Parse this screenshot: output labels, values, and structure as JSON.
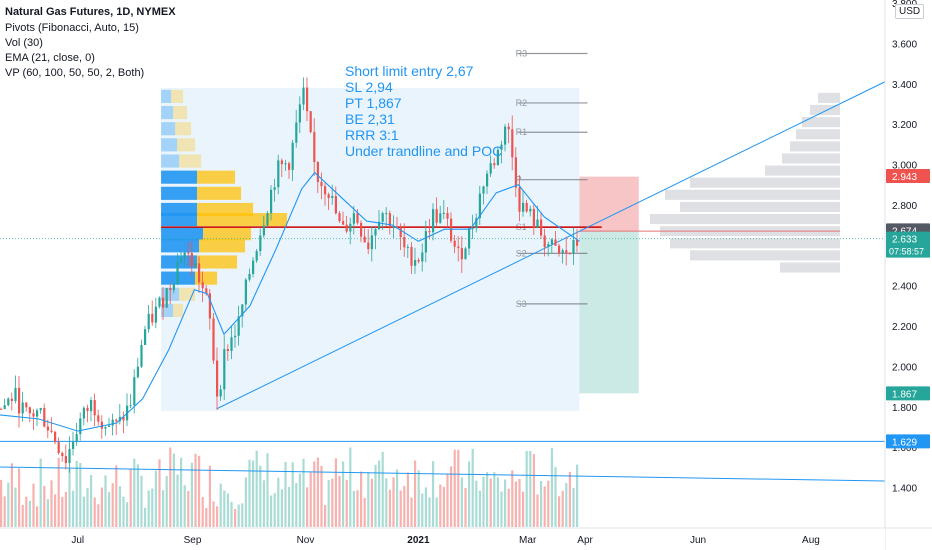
{
  "header": {
    "title": "Natural Gas Futures, 1D, NYMEX",
    "indicators": [
      "Pivots (Fibonacci, Auto, 15)",
      "Vol (30)",
      "EMA (21, close, 0)",
      "VP (60, 100, 50, 50, 2, Both)"
    ]
  },
  "annotation": {
    "lines": [
      "Short limit entry 2,67",
      "SL 2,94",
      "PT 1,867",
      "BE 2,31",
      "RRR 3:1",
      "Under trandline and POC"
    ]
  },
  "colors": {
    "up": "#26a69a",
    "down": "#ef5350",
    "ema": "#2196f3",
    "poc": "#cc0000",
    "pivot": "#787b86",
    "vp_up": "#2196f3",
    "vp_down": "#ffc107",
    "loss_zone": "#f7c5c5",
    "profit_zone": "#cbe9e5",
    "range_box": "#eaf4fc"
  },
  "chart_data": {
    "type": "candlestick",
    "symbol": "Natural Gas Futures",
    "timeframe": "1D",
    "exchange": "NYMEX",
    "currency": "USD",
    "ylim": [
      1.2,
      3.8
    ],
    "y_ticks": [
      "3.800",
      "3.600",
      "3.400",
      "3.200",
      "3.000",
      "2.800",
      "2.600",
      "2.400",
      "2.200",
      "2.000",
      "1.800",
      "1.600",
      "1.400"
    ],
    "x_ticks": [
      "Jul",
      "Sep",
      "Nov",
      "2021",
      "Mar",
      "Apr",
      "Jun",
      "Aug"
    ],
    "x_tick_dates": [
      "2020-07-01",
      "2020-09-01",
      "2020-11-01",
      "2021-01-01",
      "2021-03-01",
      "2021-04-01",
      "2021-06-01",
      "2021-08-01"
    ],
    "x_range": [
      "2020-05-20",
      "2021-09-10"
    ],
    "price_labels": [
      {
        "label": "2.943",
        "value": 2.943,
        "color": "#ef5350"
      },
      {
        "label": "2.674",
        "value": 2.674,
        "color": "#555963"
      },
      {
        "label": "2.633",
        "value": 2.633,
        "color": "#26a69a",
        "countdown": "07:58:57"
      },
      {
        "label": "1.867",
        "value": 1.867,
        "color": "#26a69a"
      },
      {
        "label": "1.629",
        "value": 1.629,
        "color": "#2196f3"
      }
    ],
    "pivots": [
      {
        "name": "R3",
        "value": 3.55
      },
      {
        "name": "R2",
        "value": 3.305
      },
      {
        "name": "R1",
        "value": 3.16
      },
      {
        "name": "P",
        "value": 2.925
      },
      {
        "name": "S1",
        "value": 2.69
      },
      {
        "name": "S2",
        "value": 2.56
      },
      {
        "name": "S3",
        "value": 2.31
      }
    ],
    "trade": {
      "entry": 2.67,
      "stop_loss": 2.94,
      "target": 1.867,
      "break_even": 2.31,
      "rrr": "3:1"
    },
    "trendline": {
      "from": [
        "2020-09-14",
        1.79
      ],
      "to": [
        "2021-09-10",
        3.41
      ]
    },
    "horizontal_line": 1.629,
    "poc": 2.69,
    "close_series": [
      {
        "x": "2020-05-20",
        "y": 1.79
      },
      {
        "x": "2020-05-27",
        "y": 1.86
      },
      {
        "x": "2020-06-03",
        "y": 1.75
      },
      {
        "x": "2020-06-10",
        "y": 1.78
      },
      {
        "x": "2020-06-17",
        "y": 1.66
      },
      {
        "x": "2020-06-24",
        "y": 1.54
      },
      {
        "x": "2020-07-01",
        "y": 1.72
      },
      {
        "x": "2020-07-08",
        "y": 1.82
      },
      {
        "x": "2020-07-15",
        "y": 1.72
      },
      {
        "x": "2020-07-22",
        "y": 1.7
      },
      {
        "x": "2020-07-29",
        "y": 1.82
      },
      {
        "x": "2020-08-05",
        "y": 2.17
      },
      {
        "x": "2020-08-12",
        "y": 2.28
      },
      {
        "x": "2020-08-19",
        "y": 2.4
      },
      {
        "x": "2020-08-26",
        "y": 2.58
      },
      {
        "x": "2020-09-02",
        "y": 2.49
      },
      {
        "x": "2020-09-09",
        "y": 2.29
      },
      {
        "x": "2020-09-14",
        "y": 1.84
      },
      {
        "x": "2020-09-18",
        "y": 2.08
      },
      {
        "x": "2020-09-25",
        "y": 2.2
      },
      {
        "x": "2020-10-02",
        "y": 2.5
      },
      {
        "x": "2020-10-09",
        "y": 2.74
      },
      {
        "x": "2020-10-16",
        "y": 2.97
      },
      {
        "x": "2020-10-23",
        "y": 3.02
      },
      {
        "x": "2020-10-30",
        "y": 3.36
      },
      {
        "x": "2020-11-06",
        "y": 2.95
      },
      {
        "x": "2020-11-13",
        "y": 2.87
      },
      {
        "x": "2020-11-20",
        "y": 2.66
      },
      {
        "x": "2020-11-27",
        "y": 2.76
      },
      {
        "x": "2020-12-04",
        "y": 2.6
      },
      {
        "x": "2020-12-11",
        "y": 2.78
      },
      {
        "x": "2020-12-18",
        "y": 2.7
      },
      {
        "x": "2020-12-25",
        "y": 2.55
      },
      {
        "x": "2021-01-01",
        "y": 2.54
      },
      {
        "x": "2021-01-08",
        "y": 2.75
      },
      {
        "x": "2021-01-15",
        "y": 2.73
      },
      {
        "x": "2021-01-22",
        "y": 2.54
      },
      {
        "x": "2021-01-29",
        "y": 2.68
      },
      {
        "x": "2021-02-05",
        "y": 2.93
      },
      {
        "x": "2021-02-12",
        "y": 3.05
      },
      {
        "x": "2021-02-17",
        "y": 3.22
      },
      {
        "x": "2021-02-24",
        "y": 2.81
      },
      {
        "x": "2021-03-03",
        "y": 2.73
      },
      {
        "x": "2021-03-10",
        "y": 2.62
      },
      {
        "x": "2021-03-17",
        "y": 2.55
      },
      {
        "x": "2021-03-24",
        "y": 2.57
      },
      {
        "x": "2021-03-29",
        "y": 2.633
      }
    ],
    "ema_series": [
      {
        "x": "2020-05-20",
        "y": 1.76
      },
      {
        "x": "2020-06-10",
        "y": 1.74
      },
      {
        "x": "2020-07-01",
        "y": 1.68
      },
      {
        "x": "2020-07-22",
        "y": 1.72
      },
      {
        "x": "2020-08-05",
        "y": 1.84
      },
      {
        "x": "2020-08-19",
        "y": 2.08
      },
      {
        "x": "2020-09-02",
        "y": 2.38
      },
      {
        "x": "2020-09-09",
        "y": 2.36
      },
      {
        "x": "2020-09-18",
        "y": 2.16
      },
      {
        "x": "2020-10-02",
        "y": 2.3
      },
      {
        "x": "2020-10-16",
        "y": 2.58
      },
      {
        "x": "2020-10-30",
        "y": 2.88
      },
      {
        "x": "2020-11-06",
        "y": 2.96
      },
      {
        "x": "2020-11-20",
        "y": 2.84
      },
      {
        "x": "2020-12-04",
        "y": 2.72
      },
      {
        "x": "2020-12-18",
        "y": 2.7
      },
      {
        "x": "2021-01-01",
        "y": 2.62
      },
      {
        "x": "2021-01-15",
        "y": 2.68
      },
      {
        "x": "2021-01-29",
        "y": 2.68
      },
      {
        "x": "2021-02-12",
        "y": 2.86
      },
      {
        "x": "2021-02-24",
        "y": 2.9
      },
      {
        "x": "2021-03-10",
        "y": 2.74
      },
      {
        "x": "2021-03-29",
        "y": 2.62
      }
    ]
  }
}
